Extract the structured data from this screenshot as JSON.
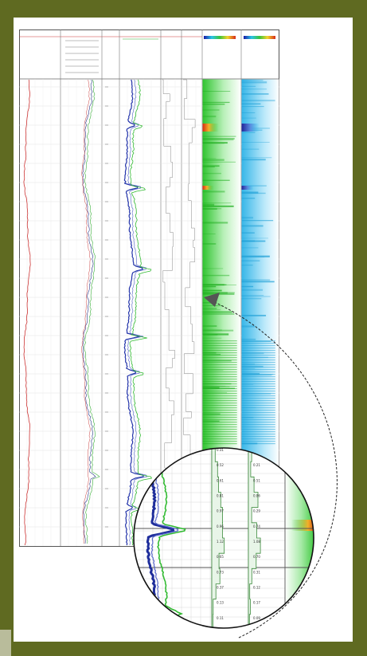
{
  "header": {
    "track_labels": [
      "",
      "",
      "",
      "",
      "",
      "",
      "",
      ""
    ],
    "legend_scale": [
      "",
      ""
    ]
  },
  "depth_track": {
    "ticks": [
      "",
      "",
      "",
      "",
      "",
      "",
      "",
      "",
      "",
      "",
      "",
      "",
      "",
      "",
      "",
      "",
      "",
      "",
      "",
      "",
      "",
      "",
      "",
      ""
    ]
  },
  "zoom": {
    "col1_values": [
      "0.31",
      "0.52",
      "0.61",
      "0.81",
      "0.97",
      "0.96",
      "1.12",
      "0.65",
      "0.73",
      "0.37",
      "0.13",
      "0.11"
    ],
    "col2_values": [
      "0.29",
      "0.21",
      "0.51",
      "0.86",
      "0.29",
      "0.74",
      "1.08",
      "0.70",
      "0.31",
      "0.12",
      "0.17",
      "0.09"
    ]
  },
  "colors": {
    "frame": "#5f6a21",
    "track_red": "#cc3333",
    "track_blue": "#2233aa",
    "track_green": "#33bb33",
    "image1_base": "#35c935",
    "image2_base": "#35b6e6"
  },
  "icons": [
    "arrow-pointer-icon"
  ]
}
